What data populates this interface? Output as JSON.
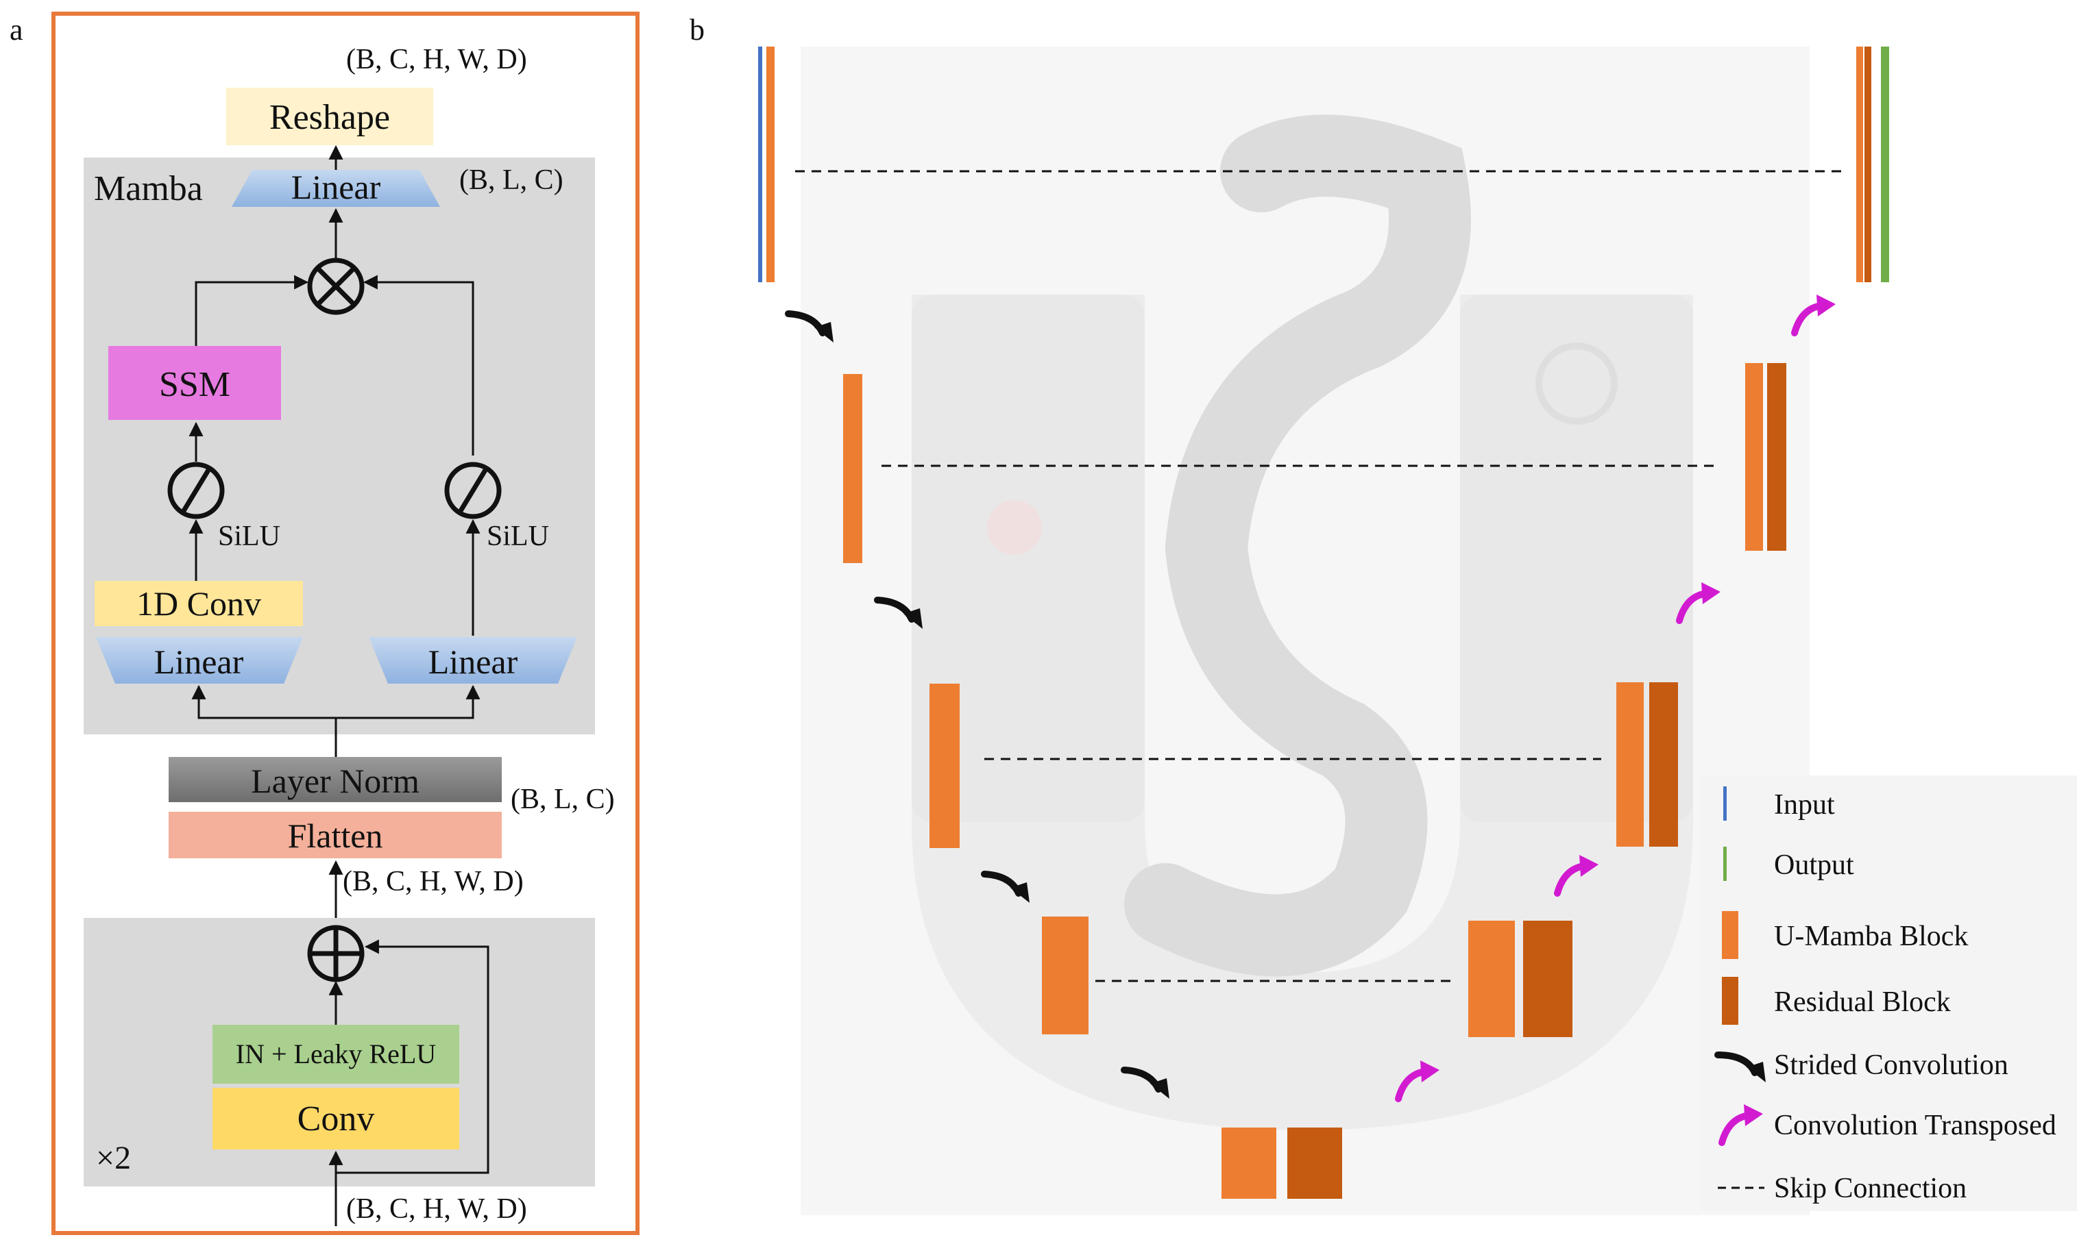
{
  "panel_a": {
    "letter": "a",
    "dims_top": "(B, C, H, W, D)",
    "dims_linear": "(B, L, C)",
    "dims_flatten": "(B, L, C)",
    "dims_mid": "(B, C, H, W, D)",
    "dims_input": "(B, C, H, W, D)",
    "reshape": "Reshape",
    "mamba_title": "Mamba",
    "linear_out": "Linear",
    "ssm": "SSM",
    "silu_left": "SiLU",
    "silu_right": "SiLU",
    "conv1d": "1D Conv",
    "linear_left": "Linear",
    "linear_right": "Linear",
    "layer_norm": "Layer Norm",
    "flatten": "Flatten",
    "in_relu": "IN + Leaky ReLU",
    "conv": "Conv",
    "repeat": "×2"
  },
  "panel_b": {
    "letter": "b",
    "legend": {
      "input": "Input",
      "output": "Output",
      "umamba": "U-Mamba Block",
      "residual": "Residual Block",
      "strided": "Strided Convolution",
      "transposed": "Convolution Transposed",
      "skip": "Skip Connection"
    }
  },
  "colors": {
    "border_orange": "#E8793A",
    "umamba": "#ED7D31",
    "residual": "#C55A11",
    "input_blue": "#4472C4",
    "output_green": "#70AD47",
    "magenta": "#D21BD1",
    "ssm_pink": "#E67AE0",
    "reshape_yellow": "#FFF2CC",
    "conv1d_yellow": "#FFE699",
    "linear_blue": "#A9C4E8",
    "flatten_salmon": "#F4B09A",
    "in_green": "#A9D08E",
    "conv_yellow": "#FFD966",
    "panel_gray": "#D9D9D9"
  }
}
